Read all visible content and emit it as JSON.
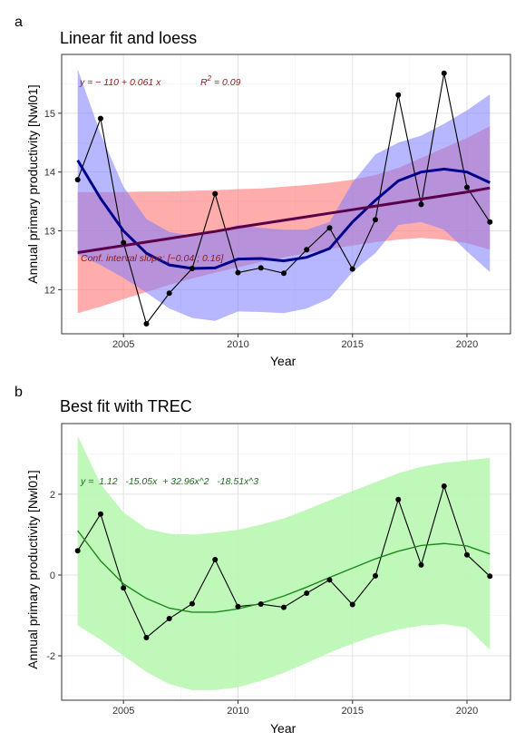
{
  "chart_data": [
    {
      "panel_tag": "a",
      "type": "line",
      "title": "Linear fit and loess",
      "xlabel": "Year",
      "ylabel": "Annual primary productivity [Nwl01]",
      "xlim": [
        2002.3,
        2021.9
      ],
      "ylim": [
        11.25,
        16.0
      ],
      "xticks": [
        2005,
        2010,
        2015,
        2020
      ],
      "yticks": [
        12,
        13,
        14,
        15
      ],
      "grid": true,
      "x": [
        2003,
        2004,
        2005,
        2006,
        2007,
        2008,
        2009,
        2010,
        2011,
        2012,
        2013,
        2014,
        2015,
        2016,
        2017,
        2018,
        2019,
        2020,
        2021
      ],
      "series": [
        {
          "role": "observed",
          "color": "#000000",
          "values": [
            13.87,
            14.91,
            12.8,
            11.42,
            11.94,
            12.36,
            13.63,
            12.29,
            12.37,
            12.28,
            12.68,
            13.05,
            12.35,
            13.19,
            15.31,
            13.45,
            15.68,
            13.74,
            13.15
          ]
        },
        {
          "role": "loess",
          "color": "#00008b",
          "values": [
            14.2,
            13.55,
            13.0,
            12.62,
            12.42,
            12.36,
            12.37,
            12.52,
            12.53,
            12.49,
            12.55,
            12.7,
            13.15,
            13.52,
            13.85,
            14.0,
            14.05,
            14.0,
            13.82
          ]
        },
        {
          "role": "loess_ci",
          "color": "#7b7bff",
          "upper": [
            15.75,
            14.65,
            13.75,
            13.2,
            12.98,
            12.92,
            12.97,
            13.1,
            13.05,
            13.02,
            13.02,
            13.15,
            13.82,
            14.3,
            14.5,
            14.62,
            14.82,
            15.05,
            15.32
          ],
          "lower": [
            12.6,
            12.42,
            12.2,
            11.95,
            11.68,
            11.52,
            11.47,
            11.63,
            11.62,
            11.6,
            11.68,
            11.85,
            12.3,
            12.62,
            13.1,
            13.15,
            13.02,
            12.65,
            12.3
          ]
        },
        {
          "role": "linear_fit",
          "color": "#5a004a",
          "values": [
            12.63,
            12.69,
            12.75,
            12.81,
            12.87,
            12.93,
            12.99,
            13.06,
            13.12,
            13.18,
            13.24,
            13.3,
            13.36,
            13.42,
            13.48,
            13.54,
            13.6,
            13.66,
            13.73
          ]
        },
        {
          "role": "linear_ci",
          "color": "#ff7f7f",
          "upper": [
            13.66,
            13.66,
            13.66,
            13.67,
            13.67,
            13.68,
            13.69,
            13.71,
            13.72,
            13.75,
            13.78,
            13.82,
            13.87,
            13.95,
            14.07,
            14.24,
            14.41,
            14.58,
            14.78
          ],
          "lower": [
            11.6,
            11.71,
            11.84,
            11.96,
            12.08,
            12.19,
            12.29,
            12.38,
            12.47,
            12.55,
            12.62,
            12.69,
            12.75,
            12.81,
            12.85,
            12.88,
            12.85,
            12.79,
            12.68
          ]
        }
      ],
      "annotations": {
        "eq_main": "y = − 110 + 0.061 x",
        "eq_r2_label": "R",
        "eq_r2_sup": "2",
        "eq_r2_val": " = 0.09",
        "ci_text": "Conf. interval slope: [−0.04 ; 0.16]",
        "color": "#8b1a1a"
      }
    },
    {
      "panel_tag": "b",
      "type": "line",
      "title": "Best fit with TREC",
      "xlabel": "Year",
      "ylabel": "Annual primary productivity [Nwl01]",
      "xlim": [
        2002.3,
        2021.9
      ],
      "ylim": [
        -3.1,
        3.75
      ],
      "xticks": [
        2005,
        2010,
        2015,
        2020
      ],
      "yticks": [
        -2,
        0,
        2
      ],
      "grid": true,
      "x": [
        2003,
        2004,
        2005,
        2006,
        2007,
        2008,
        2009,
        2010,
        2011,
        2012,
        2013,
        2014,
        2015,
        2016,
        2017,
        2018,
        2019,
        2020,
        2021
      ],
      "series": [
        {
          "role": "observed",
          "color": "#000000",
          "values": [
            0.6,
            1.51,
            -0.32,
            -1.55,
            -1.08,
            -0.71,
            0.38,
            -0.78,
            -0.72,
            -0.8,
            -0.45,
            -0.12,
            -0.73,
            -0.02,
            1.87,
            0.25,
            2.2,
            0.5,
            -0.03
          ]
        },
        {
          "role": "fit",
          "color": "#1a8a1a",
          "values": [
            1.1,
            0.35,
            -0.22,
            -0.58,
            -0.82,
            -0.92,
            -0.92,
            -0.84,
            -0.7,
            -0.52,
            -0.3,
            -0.06,
            0.17,
            0.4,
            0.59,
            0.73,
            0.78,
            0.72,
            0.52
          ]
        },
        {
          "role": "fit_ci",
          "color": "#b9f7b2",
          "upper": [
            3.45,
            2.25,
            1.55,
            1.15,
            1.02,
            1.0,
            1.05,
            1.12,
            1.25,
            1.4,
            1.62,
            1.85,
            2.08,
            2.3,
            2.52,
            2.68,
            2.78,
            2.84,
            2.9
          ],
          "lower": [
            -1.25,
            -1.6,
            -2.0,
            -2.4,
            -2.7,
            -2.85,
            -2.85,
            -2.78,
            -2.62,
            -2.42,
            -2.18,
            -1.92,
            -1.7,
            -1.5,
            -1.35,
            -1.25,
            -1.22,
            -1.3,
            -1.85
          ]
        }
      ],
      "annotations": {
        "eq_main": "y =  1.12   -15.05x  + 32.96x^2   -18.51x^3",
        "color": "#1a6b1a"
      }
    }
  ]
}
